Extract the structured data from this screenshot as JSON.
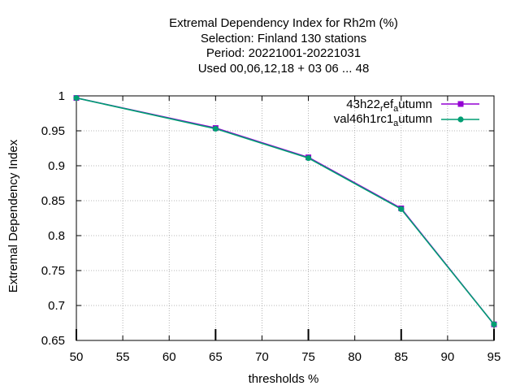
{
  "chart_data": {
    "type": "line",
    "title_lines": [
      "Extremal Dependency Index  for Rh2m (%)",
      "Selection: Finland    130 stations",
      "Period: 20221001-20221031",
      "Used  00,06,12,18  + 03 06 ... 48"
    ],
    "xlabel": "thresholds %",
    "ylabel": "Extremal Dependency Index",
    "xlim": [
      50,
      95
    ],
    "ylim": [
      0.65,
      1.0
    ],
    "xticks": [
      50,
      55,
      60,
      65,
      70,
      75,
      80,
      85,
      90,
      95
    ],
    "yticks": [
      0.65,
      0.7,
      0.75,
      0.8,
      0.85,
      0.9,
      0.95,
      1.0
    ],
    "ytick_labels": [
      "0.65",
      "0.7",
      "0.75",
      "0.8",
      "0.85",
      "0.9",
      "0.95",
      "1"
    ],
    "grid": true,
    "legend_position": "top-right",
    "x": [
      50,
      65,
      75,
      85,
      95
    ],
    "series": [
      {
        "legend": {
          "main": "43h22",
          "sub1": "r",
          "mid": "ef",
          "sub2": "a",
          "tail": "utumn"
        },
        "color": "#9400d3",
        "values": [
          0.997,
          0.954,
          0.912,
          0.839,
          0.673
        ]
      },
      {
        "legend": {
          "main": "val46h1rc1",
          "sub1": "",
          "mid": "",
          "sub2": "a",
          "tail": "utumn"
        },
        "color": "#009e73",
        "values": [
          0.997,
          0.953,
          0.911,
          0.838,
          0.673
        ]
      }
    ]
  }
}
